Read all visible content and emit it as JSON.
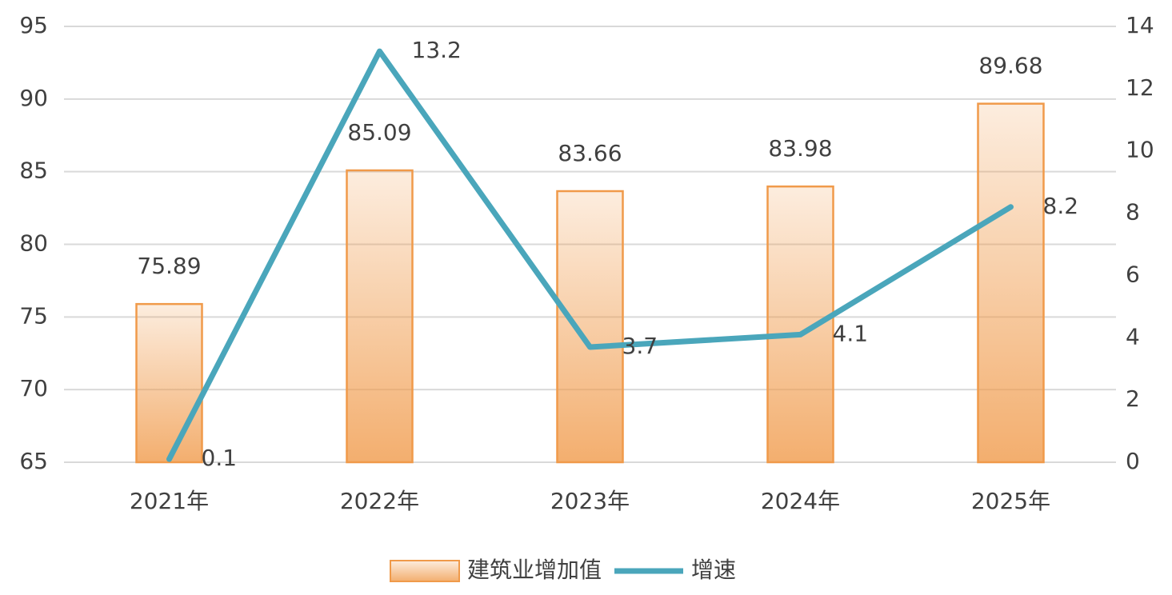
{
  "chart_data": {
    "type": "bar",
    "categories": [
      "2021年",
      "2022年",
      "2023年",
      "2024年",
      "2025年"
    ],
    "series": [
      {
        "name": "建筑业增加值",
        "type": "bar",
        "color": "#f09a4a",
        "values": [
          75.89,
          85.09,
          83.66,
          83.98,
          89.68
        ]
      },
      {
        "name": "增速",
        "type": "line",
        "axis": "y2",
        "color": "#4aa6bb",
        "values": [
          0.1,
          13.2,
          3.7,
          4.1,
          8.2
        ]
      }
    ],
    "ylim": [
      65,
      95
    ],
    "yticks": [
      65,
      70,
      75,
      80,
      85,
      90,
      95
    ],
    "y2lim": [
      0,
      14
    ],
    "y2ticks": [
      0,
      2,
      4,
      6,
      8,
      10,
      12,
      14
    ],
    "grid": true,
    "legend": "bottom"
  }
}
